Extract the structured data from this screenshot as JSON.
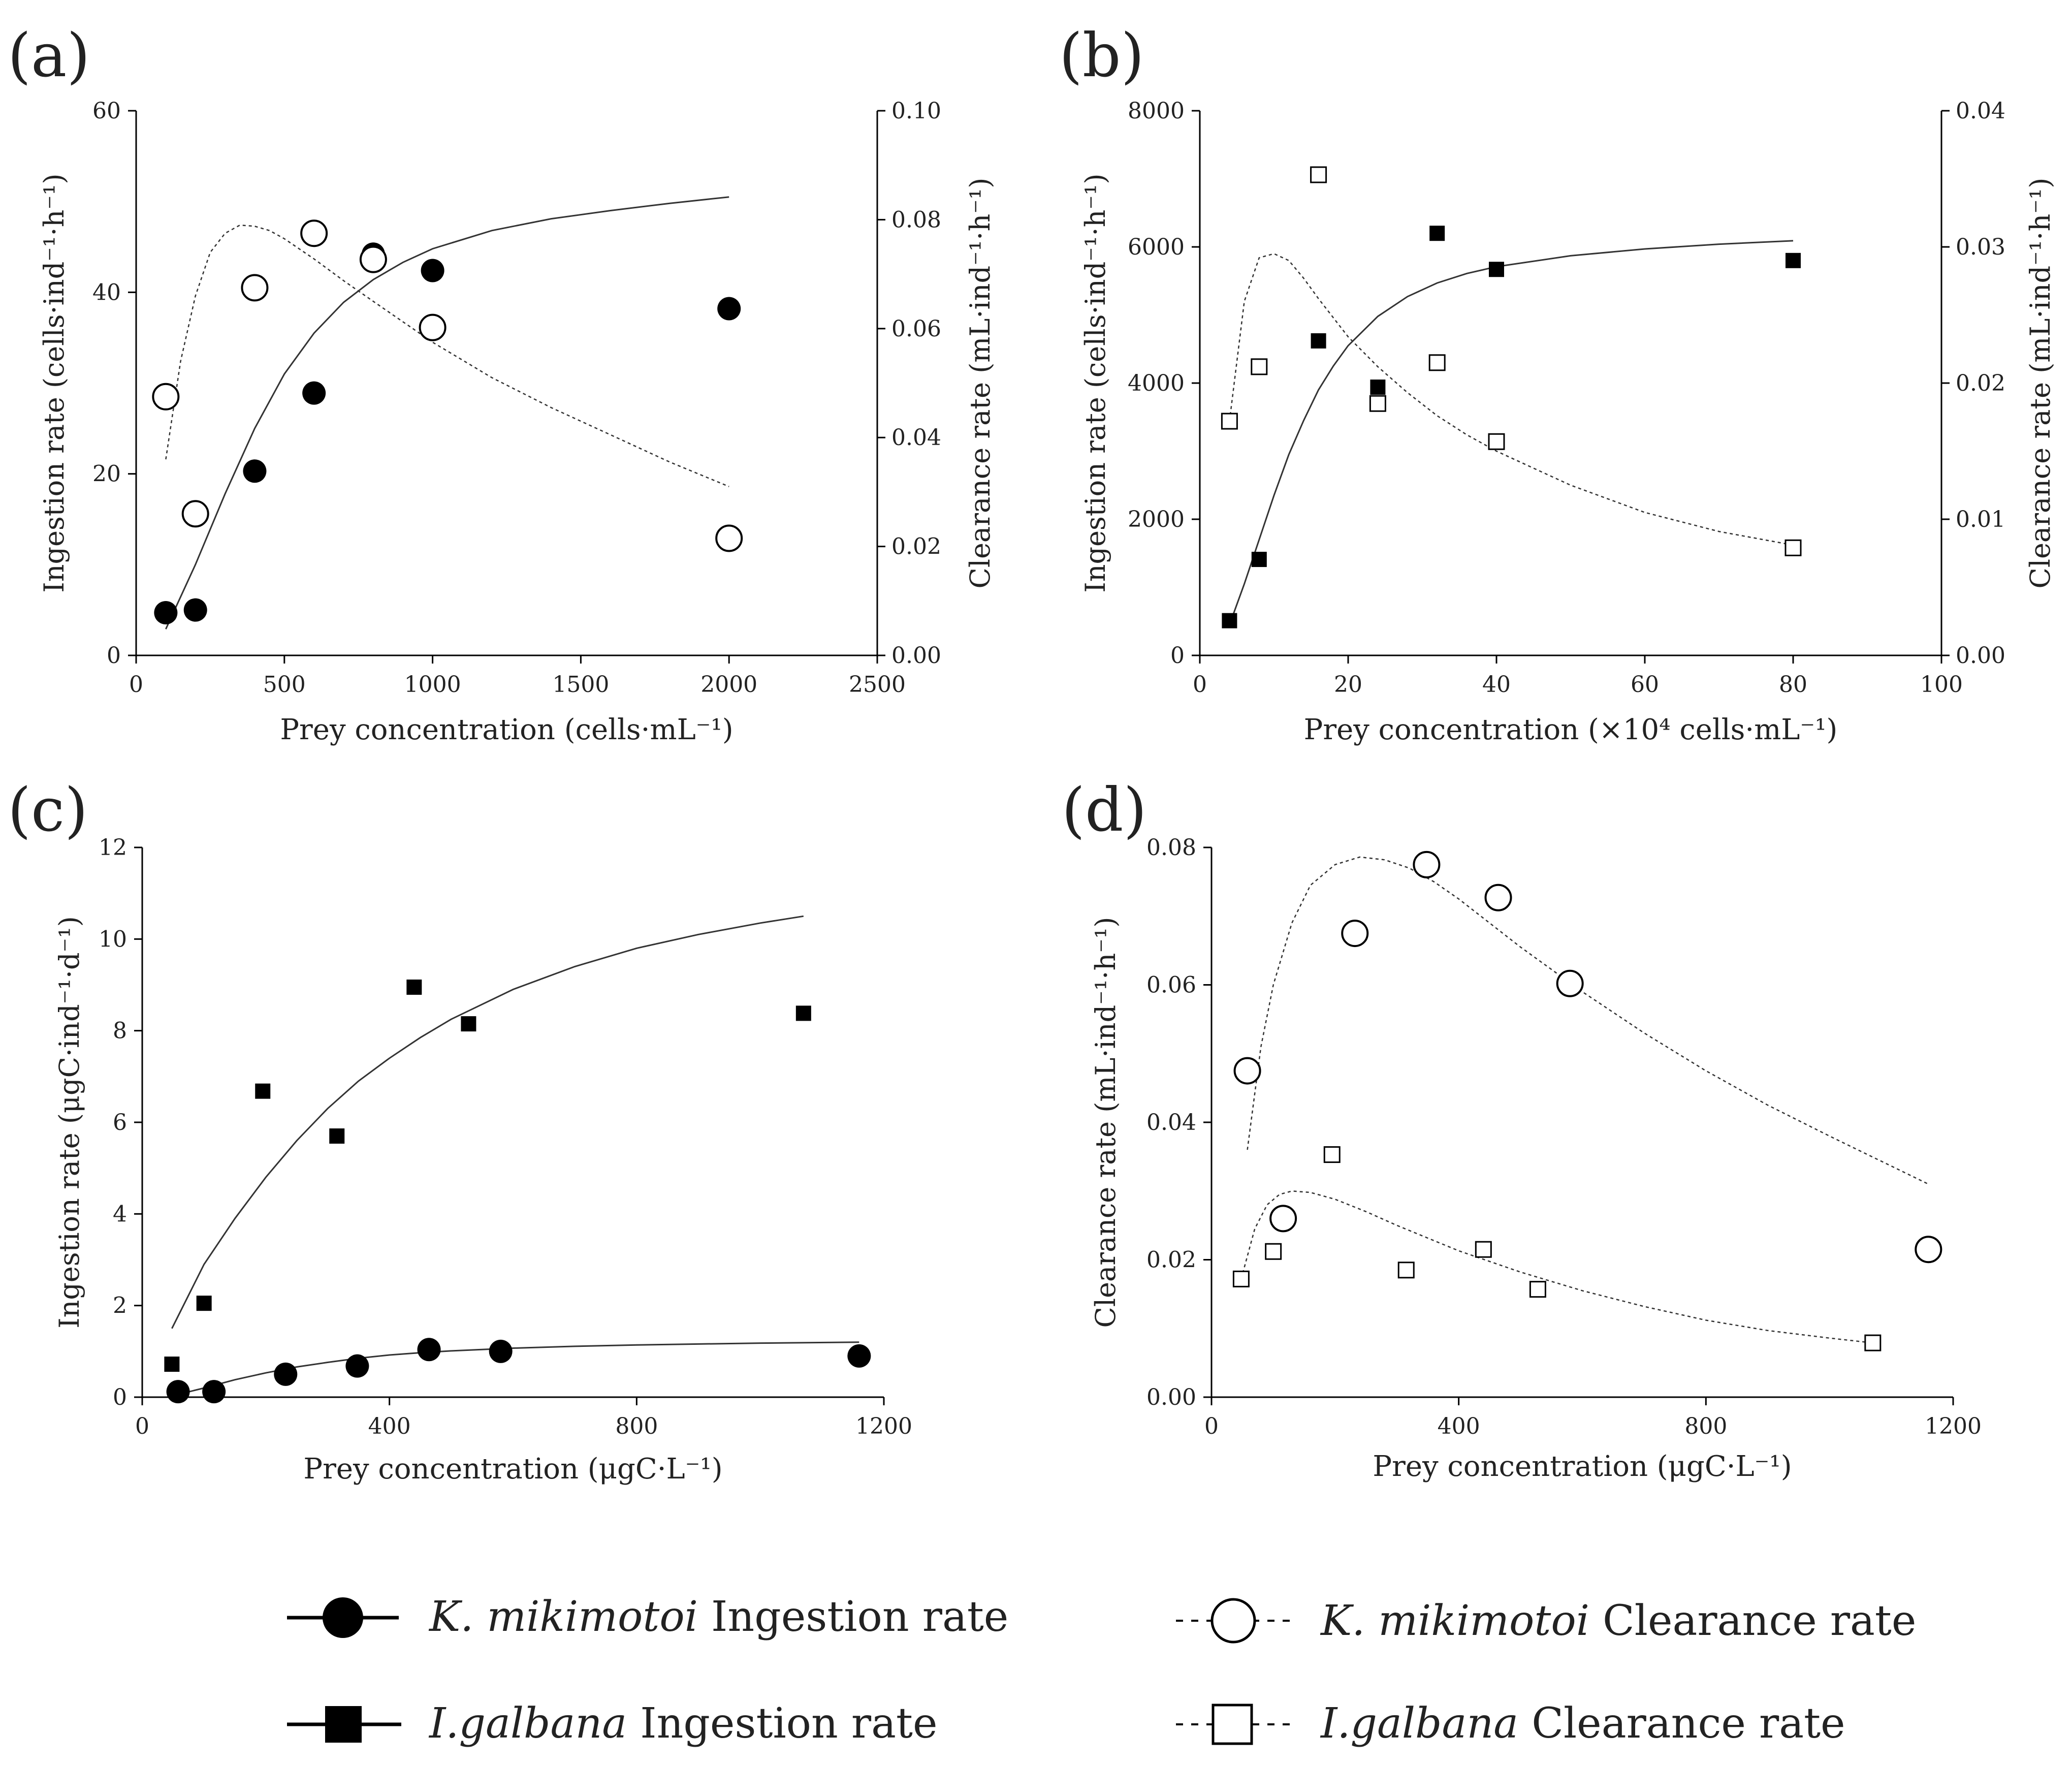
{
  "chart_data": [
    {
      "panel": "(a)",
      "type": "scatter",
      "xlabel": "Prey concentration (cells·mL⁻¹)",
      "ylabel": "Ingestion rate (cells·ind⁻¹·h⁻¹)",
      "y2label": "Clearance rate (mL·ind⁻¹·h⁻¹)",
      "xlim": [
        0,
        2500
      ],
      "ylim": [
        0,
        60
      ],
      "y2lim": [
        0,
        0.1
      ],
      "xticks": [
        "0",
        "500",
        "1000",
        "1500",
        "2000",
        "2500"
      ],
      "yticks": [
        "0",
        "20",
        "40",
        "60"
      ],
      "y2ticks": [
        "0.00",
        "0.02",
        "0.04",
        "0.06",
        "0.08",
        "0.10"
      ],
      "series": [
        {
          "name": "K. mikimotoi Ingestion rate",
          "axis": "left",
          "marker": "filled-circle",
          "x": [
            100,
            200,
            400,
            600,
            800,
            1000,
            2000
          ],
          "y": [
            4.7,
            5.0,
            20.3,
            28.9,
            44.2,
            42.4,
            38.2
          ]
        },
        {
          "name": "K. mikimotoi Clearance rate",
          "axis": "right",
          "marker": "open-circle",
          "x": [
            100,
            200,
            400,
            600,
            800,
            1000,
            2000
          ],
          "y": [
            0.0475,
            0.026,
            0.0675,
            0.0775,
            0.0727,
            0.0602,
            0.0215
          ]
        }
      ],
      "curves": [
        {
          "axis": "left",
          "style": "solid",
          "x": [
            100,
            200,
            300,
            400,
            500,
            600,
            700,
            800,
            900,
            1000,
            1200,
            1400,
            1600,
            1800,
            2000
          ],
          "y": [
            2.9,
            10,
            17.8,
            25,
            31,
            35.5,
            38.9,
            41.4,
            43.3,
            44.8,
            46.8,
            48.1,
            49.0,
            49.8,
            50.5
          ]
        },
        {
          "axis": "right",
          "style": "dashed",
          "x": [
            100,
            150,
            200,
            250,
            300,
            350,
            400,
            450,
            500,
            600,
            700,
            800,
            1000,
            1200,
            1400,
            1600,
            1800,
            2000
          ],
          "y": [
            0.036,
            0.054,
            0.066,
            0.074,
            0.0775,
            0.079,
            0.0788,
            0.078,
            0.0765,
            0.0728,
            0.0688,
            0.065,
            0.0575,
            0.051,
            0.0455,
            0.0405,
            0.0355,
            0.031
          ]
        }
      ]
    },
    {
      "panel": "(b)",
      "type": "scatter",
      "xlabel": "Prey concentration (×10⁴ cells·mL⁻¹)",
      "ylabel": "Ingestion rate (cells·ind⁻¹·h⁻¹)",
      "y2label": "Clearance rate (mL·ind⁻¹·h⁻¹)",
      "xlim": [
        0,
        100
      ],
      "ylim": [
        0,
        8000
      ],
      "y2lim": [
        0,
        0.04
      ],
      "xticks": [
        "0",
        "20",
        "40",
        "60",
        "80",
        "100"
      ],
      "yticks": [
        "0",
        "2000",
        "4000",
        "6000",
        "8000"
      ],
      "y2ticks": [
        "0.00",
        "0.01",
        "0.02",
        "0.03",
        "0.04"
      ],
      "series": [
        {
          "name": "I.galbana Ingestion rate",
          "axis": "left",
          "marker": "filled-square",
          "x": [
            4,
            8,
            16,
            24,
            32,
            40,
            80
          ],
          "y": [
            510,
            1410,
            4620,
            3940,
            6200,
            5670,
            5800
          ]
        },
        {
          "name": "I.galbana Clearance rate",
          "axis": "right",
          "marker": "open-square",
          "x": [
            4,
            8,
            16,
            24,
            32,
            40,
            80
          ],
          "y": [
            0.0172,
            0.0212,
            0.0353,
            0.0185,
            0.0215,
            0.0157,
            0.0079
          ]
        }
      ],
      "curves": [
        {
          "axis": "left",
          "style": "solid",
          "x": [
            4,
            6,
            8,
            10,
            12,
            14,
            16,
            18,
            20,
            24,
            28,
            32,
            36,
            40,
            50,
            60,
            70,
            80
          ],
          "y": [
            450,
            1050,
            1700,
            2350,
            2950,
            3450,
            3900,
            4250,
            4550,
            4980,
            5270,
            5470,
            5610,
            5710,
            5870,
            5970,
            6040,
            6090
          ]
        },
        {
          "axis": "right",
          "style": "dashed",
          "x": [
            4,
            6,
            8,
            10,
            12,
            14,
            16,
            20,
            24,
            28,
            32,
            36,
            40,
            50,
            60,
            70,
            80
          ],
          "y": [
            0.0172,
            0.026,
            0.0292,
            0.0295,
            0.029,
            0.0277,
            0.0262,
            0.0234,
            0.0212,
            0.0193,
            0.0176,
            0.0162,
            0.015,
            0.0125,
            0.0105,
            0.0091,
            0.0081
          ]
        }
      ]
    },
    {
      "panel": "(c)",
      "type": "scatter",
      "xlabel": "Prey concentration  (μgC·L⁻¹)",
      "ylabel": "Ingestion rate (μgC·ind⁻¹·d⁻¹)",
      "xlim": [
        0,
        1200
      ],
      "ylim": [
        0,
        12
      ],
      "xticks": [
        "0",
        "400",
        "800",
        "1200"
      ],
      "yticks": [
        "0",
        "2",
        "4",
        "6",
        "8",
        "10",
        "12"
      ],
      "series": [
        {
          "name": "I.galbana Ingestion rate",
          "marker": "filled-square",
          "x": [
            48,
            100,
            195,
            315,
            440,
            528,
            1070
          ],
          "y": [
            0.72,
            2.05,
            6.68,
            5.7,
            8.95,
            8.15,
            8.38
          ]
        },
        {
          "name": "K. mikimotoi Ingestion rate",
          "marker": "filled-circle",
          "x": [
            58,
            116,
            232,
            348,
            464,
            580,
            1160
          ],
          "y": [
            0.12,
            0.12,
            0.5,
            0.68,
            1.04,
            1.0,
            0.9
          ]
        }
      ],
      "curves": [
        {
          "style": "solid",
          "x": [
            48,
            100,
            150,
            200,
            250,
            300,
            350,
            400,
            450,
            500,
            600,
            700,
            800,
            900,
            1000,
            1070
          ],
          "y": [
            1.5,
            2.9,
            3.9,
            4.8,
            5.6,
            6.3,
            6.9,
            7.4,
            7.85,
            8.25,
            8.9,
            9.4,
            9.8,
            10.1,
            10.35,
            10.5
          ]
        },
        {
          "style": "solid",
          "x": [
            58,
            100,
            150,
            200,
            250,
            300,
            350,
            400,
            450,
            500,
            600,
            700,
            800,
            900,
            1000,
            1160
          ],
          "y": [
            0.06,
            0.2,
            0.38,
            0.53,
            0.66,
            0.76,
            0.85,
            0.92,
            0.97,
            1.01,
            1.07,
            1.11,
            1.14,
            1.16,
            1.18,
            1.2
          ]
        }
      ]
    },
    {
      "panel": "(d)",
      "type": "scatter",
      "xlabel": "Prey concentration  (μgC·L⁻¹)",
      "ylabel": "Clearance rate (mL·ind⁻¹·h⁻¹)",
      "xlim": [
        0,
        1200
      ],
      "ylim": [
        0,
        0.08
      ],
      "xticks": [
        "0",
        "400",
        "800",
        "1200"
      ],
      "yticks": [
        "0.00",
        "0.02",
        "0.04",
        "0.06",
        "0.08"
      ],
      "series": [
        {
          "name": "K. mikimotoi Clearance rate",
          "marker": "open-circle",
          "x": [
            58,
            116,
            232,
            348,
            464,
            580,
            1160
          ],
          "y": [
            0.0475,
            0.026,
            0.0675,
            0.0775,
            0.0727,
            0.0602,
            0.0215
          ]
        },
        {
          "name": "I.galbana Clearance rate",
          "marker": "open-square",
          "x": [
            48,
            100,
            195,
            315,
            440,
            528,
            1070
          ],
          "y": [
            0.0172,
            0.0212,
            0.0353,
            0.0185,
            0.0215,
            0.0157,
            0.0079
          ]
        }
      ],
      "curves": [
        {
          "style": "dashed",
          "x": [
            58,
            80,
            100,
            130,
            160,
            200,
            240,
            280,
            320,
            360,
            400,
            500,
            600,
            700,
            800,
            900,
            1000,
            1160
          ],
          "y": [
            0.036,
            0.051,
            0.06,
            0.069,
            0.0745,
            0.0775,
            0.0786,
            0.0782,
            0.077,
            0.075,
            0.0725,
            0.0655,
            0.059,
            0.053,
            0.0475,
            0.0425,
            0.038,
            0.031
          ]
        },
        {
          "style": "dashed",
          "x": [
            48,
            70,
            90,
            110,
            130,
            160,
            200,
            250,
            300,
            400,
            500,
            600,
            700,
            800,
            900,
            1000,
            1070
          ],
          "y": [
            0.0172,
            0.0245,
            0.028,
            0.0295,
            0.03,
            0.0298,
            0.0288,
            0.027,
            0.025,
            0.0213,
            0.0182,
            0.0155,
            0.0132,
            0.0112,
            0.0097,
            0.0086,
            0.0079
          ]
        }
      ]
    }
  ],
  "legend": [
    {
      "italic": "K. mikimotoi",
      "rest": " Ingestion rate"
    },
    {
      "italic": "I.galbana",
      "rest": " Ingestion rate"
    },
    {
      "italic": "K. mikimotoi",
      "rest": " Clearance rate"
    },
    {
      "italic": "I.galbana",
      "rest": " Clearance rate"
    }
  ]
}
